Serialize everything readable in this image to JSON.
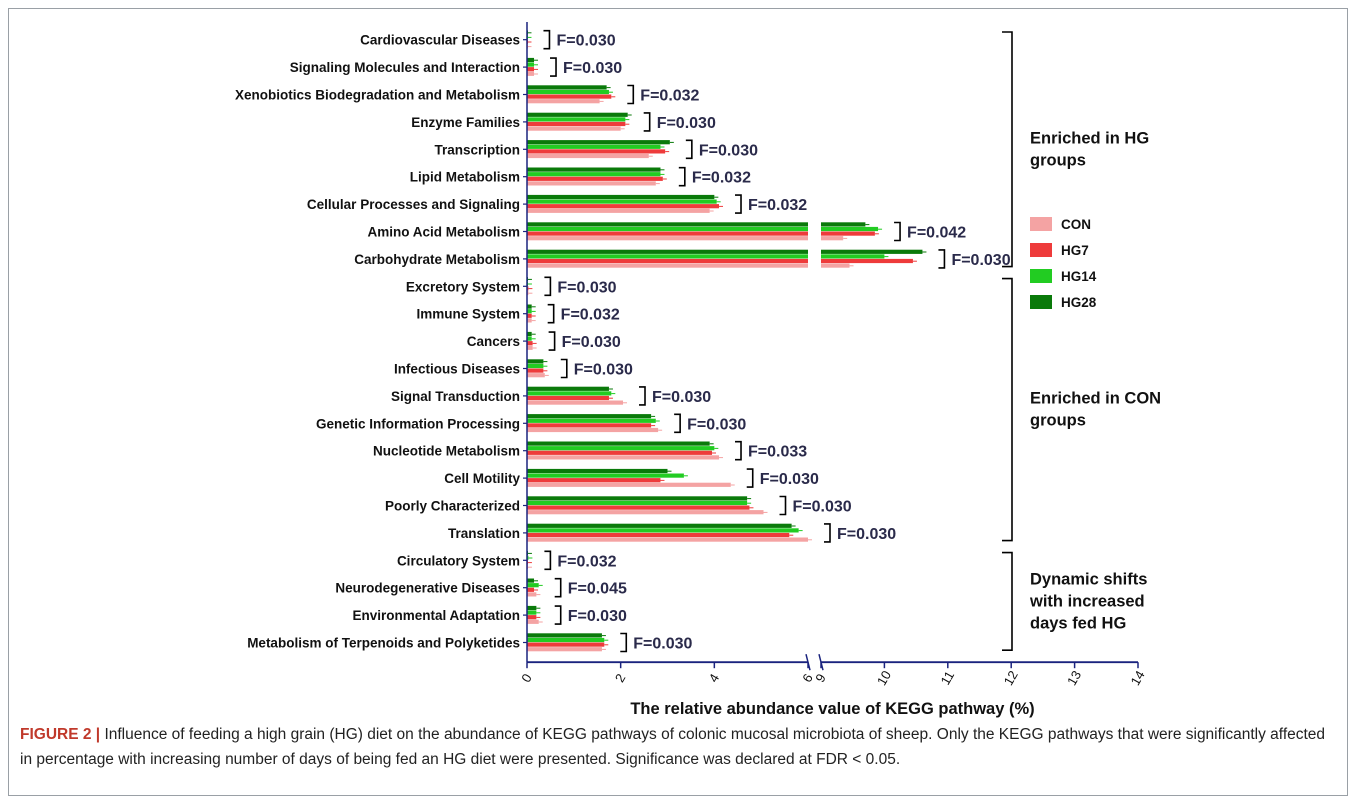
{
  "chart_data": {
    "type": "bar",
    "orientation": "horizontal",
    "xlabel": "The relative abundance value of KEGG pathway (%)",
    "ylabel": "",
    "axis_segments": [
      {
        "range": [
          0,
          6
        ],
        "ticks": [
          0,
          2,
          4,
          6
        ]
      },
      {
        "range": [
          9,
          14
        ],
        "ticks": [
          9,
          10,
          11,
          12,
          13,
          14
        ]
      }
    ],
    "categories": [
      "Cardiovascular Diseases",
      "Signaling Molecules and Interaction",
      "Xenobiotics Biodegradation and Metabolism",
      "Enzyme Families",
      "Transcription",
      "Lipid Metabolism",
      "Cellular Processes and Signaling",
      "Amino Acid Metabolism",
      "Carbohydrate Metabolism",
      "Excretory System",
      "Immune System",
      "Cancers",
      "Infectious Diseases",
      "Signal Transduction",
      "Genetic Information Processing",
      "Nucleotide Metabolism",
      "Cell Motility",
      "Poorly Characterized",
      "Translation",
      "Circulatory System",
      "Neurodegenerative Diseases",
      "Environmental Adaptation",
      "Metabolism of Terpenoids and Polyketides"
    ],
    "f_values": [
      "F=0.030",
      "F=0.030",
      "F=0.032",
      "F=0.030",
      "F=0.030",
      "F=0.032",
      "F=0.032",
      "F=0.042",
      "F=0.030",
      "F=0.030",
      "F=0.032",
      "F=0.030",
      "F=0.030",
      "F=0.030",
      "F=0.030",
      "F=0.033",
      "F=0.030",
      "F=0.030",
      "F=0.030",
      "F=0.032",
      "F=0.045",
      "F=0.030",
      "F=0.030"
    ],
    "series": [
      {
        "name": "CON",
        "color": "#f4a3a3",
        "values": [
          0.01,
          0.15,
          1.55,
          2.0,
          2.6,
          2.75,
          3.9,
          9.35,
          9.45,
          0.03,
          0.1,
          0.12,
          0.38,
          2.05,
          2.8,
          4.1,
          4.35,
          5.05,
          6.0,
          0.02,
          0.2,
          0.25,
          1.6
        ]
      },
      {
        "name": "HG7",
        "color": "#ee3b3b",
        "values": [
          0.01,
          0.15,
          1.8,
          2.1,
          2.95,
          2.9,
          4.1,
          9.85,
          10.45,
          0.03,
          0.1,
          0.12,
          0.35,
          1.75,
          2.65,
          3.95,
          2.85,
          4.75,
          5.6,
          0.02,
          0.15,
          0.2,
          1.65
        ]
      },
      {
        "name": "HG14",
        "color": "#22cc22",
        "values": [
          0.01,
          0.15,
          1.75,
          2.1,
          2.85,
          2.85,
          4.05,
          9.9,
          10.0,
          0.02,
          0.1,
          0.1,
          0.35,
          1.8,
          2.75,
          4.0,
          3.35,
          4.7,
          5.8,
          0.03,
          0.25,
          0.2,
          1.65
        ]
      },
      {
        "name": "HG28",
        "color": "#0a7a0a",
        "values": [
          0.01,
          0.15,
          1.7,
          2.15,
          3.05,
          2.85,
          4.0,
          9.7,
          10.6,
          0.02,
          0.1,
          0.1,
          0.35,
          1.75,
          2.65,
          3.9,
          3.0,
          4.7,
          5.65,
          0.02,
          0.15,
          0.2,
          1.6
        ]
      }
    ],
    "groups": [
      {
        "label_lines": [
          "Enriched in HG",
          "groups"
        ],
        "from": 0,
        "to": 8
      },
      {
        "label_lines": [
          "Enriched in CON",
          "groups"
        ],
        "from": 9,
        "to": 18
      },
      {
        "label_lines": [
          "Dynamic shifts",
          "with increased",
          "days fed HG"
        ],
        "from": 19,
        "to": 22
      }
    ],
    "legend_position": "right"
  },
  "caption": {
    "lead": "FIGURE 2 |",
    "text": " Influence of feeding a high grain (HG) diet on the abundance of KEGG pathways of colonic mucosal microbiota of sheep. Only the KEGG pathways that were significantly affected in percentage with increasing number of days of being fed an HG diet were presented. Significance was declared at FDR < 0.05."
  }
}
